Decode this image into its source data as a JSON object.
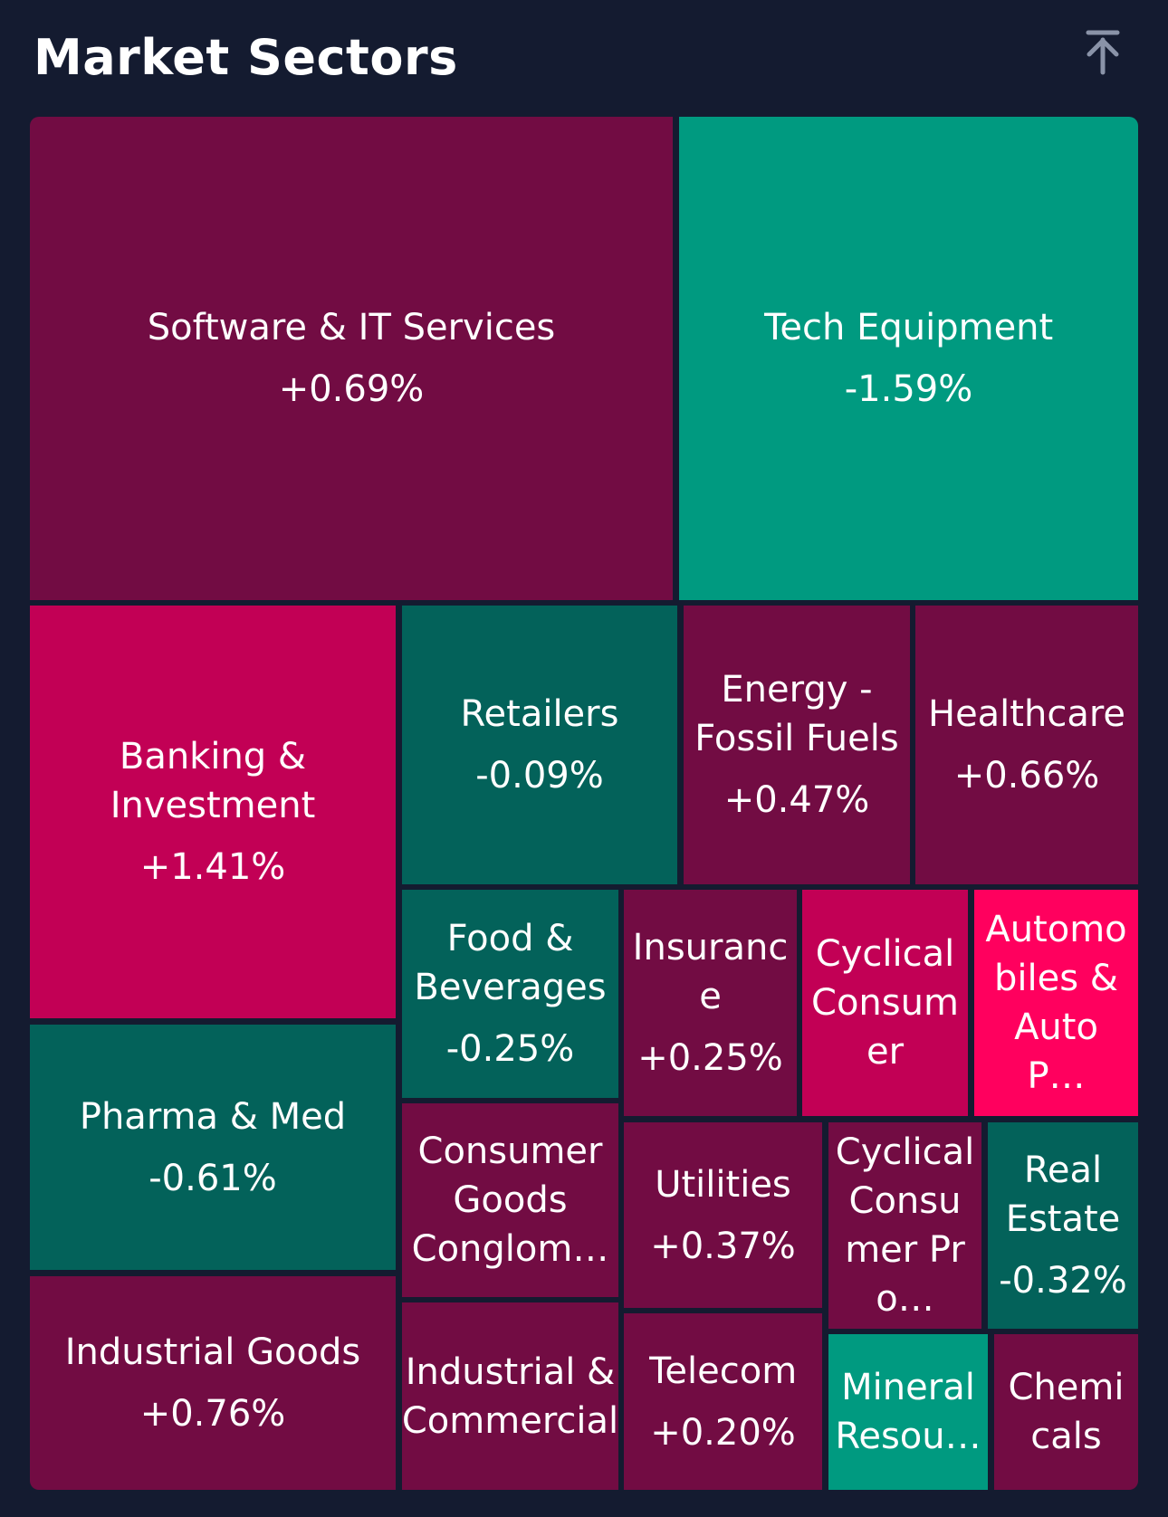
{
  "header": {
    "title": "Market Sectors",
    "collapse_icon": "arrow-up-to-top-icon"
  },
  "colors": {
    "background": "#141b30",
    "dark_maroon": "#720c43",
    "crimson": "#c20055",
    "hot_pink": "#ff005e",
    "dark_teal": "#03625a",
    "teal": "#009a80"
  },
  "sectors": [
    {
      "name": "Software & IT Services",
      "change": "+0.69%"
    },
    {
      "name": "Tech Equipment",
      "change": "-1.59%"
    },
    {
      "name": "Banking & Investment",
      "change": "+1.41%"
    },
    {
      "name": "Retailers",
      "change": "-0.09%"
    },
    {
      "name": "Energy - Fossil Fuels",
      "change": "+0.47%"
    },
    {
      "name": "Healthcare",
      "change": "+0.66%"
    },
    {
      "name": "Food & Beverages",
      "change": "-0.25%"
    },
    {
      "name": "Insurance",
      "change": "+0.25%"
    },
    {
      "name": "Cyclical Consumer",
      "change": ""
    },
    {
      "name": "Automobiles & Auto P…",
      "change": ""
    },
    {
      "name": "Pharma & Med",
      "change": "-0.61%"
    },
    {
      "name": "Consumer Goods Conglom…",
      "change": ""
    },
    {
      "name": "Utilities",
      "change": "+0.37%"
    },
    {
      "name": "Cyclical Consumer Pro…",
      "change": ""
    },
    {
      "name": "Real Estate",
      "change": "-0.32%"
    },
    {
      "name": "Industrial Goods",
      "change": "+0.76%"
    },
    {
      "name": "Industrial & Commercial",
      "change": ""
    },
    {
      "name": "Telecom",
      "change": "+0.20%"
    },
    {
      "name": "Mineral Resou…",
      "change": ""
    },
    {
      "name": "Chemicals",
      "change": ""
    }
  ]
}
